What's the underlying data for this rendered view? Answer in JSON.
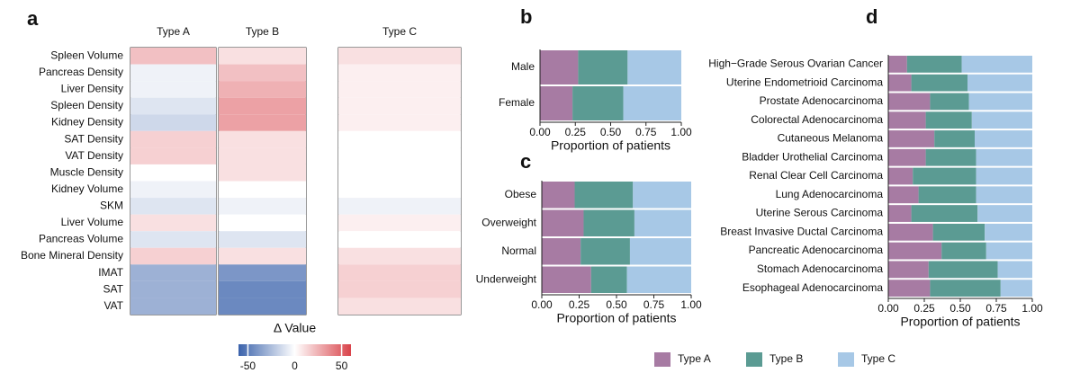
{
  "chart_data": [
    {
      "type": "heatmap",
      "panel_label": "a",
      "groups": [
        "Type A",
        "Type B",
        "Type C"
      ],
      "rows": [
        "Spleen Volume",
        "Pancreas Density",
        "Liver Density",
        "Spleen Density",
        "Kidney Density",
        "SAT Density",
        "VAT Density",
        "Muscle Density",
        "Kidney Volume",
        "SKM",
        "Liver Volume",
        "Pancreas Volume",
        "Bone Mineral Density",
        "IMAT",
        "SAT",
        "VAT"
      ],
      "values": [
        [
          20,
          10,
          10
        ],
        [
          -5,
          20,
          5
        ],
        [
          -5,
          25,
          5
        ],
        [
          -10,
          30,
          5
        ],
        [
          -15,
          30,
          5
        ],
        [
          15,
          10,
          0
        ],
        [
          15,
          10,
          0
        ],
        [
          0,
          10,
          0
        ],
        [
          -5,
          0,
          0
        ],
        [
          -10,
          -5,
          -5
        ],
        [
          10,
          0,
          5
        ],
        [
          -10,
          -10,
          0
        ],
        [
          15,
          10,
          10
        ],
        [
          -30,
          -40,
          15
        ],
        [
          -30,
          -45,
          15
        ],
        [
          -30,
          -45,
          10
        ]
      ],
      "colorbar_title": "Δ Value",
      "zlim": [
        -60,
        60
      ],
      "zticks": [
        -50,
        0,
        50
      ],
      "colorscale": [
        "#3a62ab",
        "#ffffff",
        "#d9434a"
      ]
    },
    {
      "type": "stacked-bar",
      "panel_label": "b",
      "categories": [
        "Male",
        "Female"
      ],
      "series": [
        {
          "name": "Type A",
          "color": "#a77ba3",
          "values": [
            0.27,
            0.23
          ]
        },
        {
          "name": "Type B",
          "color": "#5b9b93",
          "values": [
            0.35,
            0.36
          ]
        },
        {
          "name": "Type C",
          "color": "#a7c8e6",
          "values": [
            0.38,
            0.41
          ]
        }
      ],
      "xlim": [
        0,
        1
      ],
      "xticks": [
        {
          "value": 0,
          "label": "0.00"
        },
        {
          "value": 0.25,
          "label": "0.25"
        },
        {
          "value": 0.5,
          "label": "0.50"
        },
        {
          "value": 0.75,
          "label": "0.75"
        },
        {
          "value": 1,
          "label": "1.00"
        }
      ],
      "x_label": "Proportion of patients"
    },
    {
      "type": "stacked-bar",
      "panel_label": "c",
      "categories": [
        "Obese",
        "Overweight",
        "Normal",
        "Underweight"
      ],
      "series": [
        {
          "name": "Type A",
          "color": "#a77ba3",
          "values": [
            0.22,
            0.28,
            0.26,
            0.33
          ]
        },
        {
          "name": "Type B",
          "color": "#5b9b93",
          "values": [
            0.39,
            0.34,
            0.33,
            0.24
          ]
        },
        {
          "name": "Type C",
          "color": "#a7c8e6",
          "values": [
            0.39,
            0.38,
            0.41,
            0.43
          ]
        }
      ],
      "xlim": [
        0,
        1
      ],
      "xticks": [
        {
          "value": 0,
          "label": "0.00"
        },
        {
          "value": 0.25,
          "label": "0.25"
        },
        {
          "value": 0.5,
          "label": "0.50"
        },
        {
          "value": 0.75,
          "label": "0.75"
        },
        {
          "value": 1,
          "label": "1.00"
        }
      ],
      "x_label": "Proportion of patients"
    },
    {
      "type": "stacked-bar",
      "panel_label": "d",
      "categories": [
        "High−Grade Serous Ovarian Cancer",
        "Uterine Endometrioid Carcinoma",
        "Prostate Adenocarcinoma",
        "Colorectal Adenocarcinoma",
        "Cutaneous Melanoma",
        "Bladder Urothelial Carcinoma",
        "Renal Clear Cell Carcinoma",
        "Lung Adenocarcinoma",
        "Uterine Serous Carcinoma",
        "Breast Invasive Ductal Carcinoma",
        "Pancreatic Adenocarcinoma",
        "Stomach Adenocarcinoma",
        "Esophageal Adenocarcinoma"
      ],
      "series": [
        {
          "name": "Type A",
          "color": "#a77ba3",
          "values": [
            0.13,
            0.16,
            0.29,
            0.26,
            0.32,
            0.26,
            0.17,
            0.21,
            0.16,
            0.31,
            0.37,
            0.28,
            0.29
          ]
        },
        {
          "name": "Type B",
          "color": "#5b9b93",
          "values": [
            0.38,
            0.39,
            0.27,
            0.32,
            0.28,
            0.35,
            0.44,
            0.4,
            0.46,
            0.36,
            0.31,
            0.48,
            0.49
          ]
        },
        {
          "name": "Type C",
          "color": "#a7c8e6",
          "values": [
            0.49,
            0.45,
            0.44,
            0.42,
            0.4,
            0.39,
            0.39,
            0.39,
            0.38,
            0.33,
            0.32,
            0.24,
            0.22
          ]
        }
      ],
      "xlim": [
        0,
        1
      ],
      "xticks": [
        {
          "value": 0,
          "label": "0.00"
        },
        {
          "value": 0.25,
          "label": "0.25"
        },
        {
          "value": 0.5,
          "label": "0.50"
        },
        {
          "value": 0.75,
          "label": "0.75"
        },
        {
          "value": 1,
          "label": "1.00"
        }
      ],
      "x_label": "Proportion of patients",
      "legend": "bottom"
    }
  ]
}
